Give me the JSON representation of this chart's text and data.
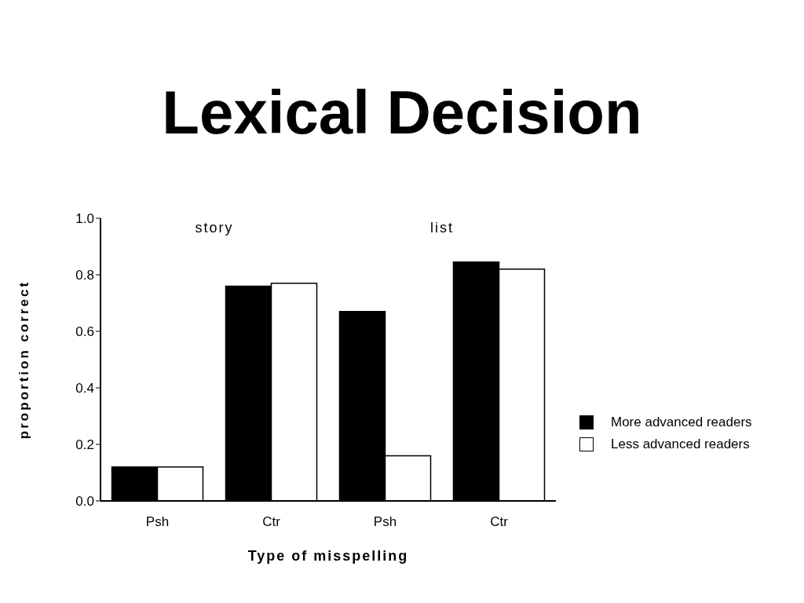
{
  "chart_data": {
    "type": "bar",
    "title": "Lexical Decision",
    "xlabel": "Type of misspelling",
    "ylabel": "proportion correct",
    "categories": [
      "Psh",
      "Ctr",
      "Psh",
      "Ctr"
    ],
    "series": [
      {
        "name": "More advanced readers",
        "color": "#000000",
        "values": [
          0.12,
          0.76,
          0.67,
          0.845
        ]
      },
      {
        "name": "Less advanced readers",
        "color": "#ffffff",
        "values": [
          0.12,
          0.77,
          0.16,
          0.82
        ]
      }
    ],
    "ylim": [
      0,
      1
    ],
    "yticks": [
      {
        "value": 0,
        "label": "0.0"
      },
      {
        "value": 0.2,
        "label": "0.2"
      },
      {
        "value": 0.4,
        "label": "0.4"
      },
      {
        "value": 0.6,
        "label": "0.6"
      },
      {
        "value": 0.8,
        "label": "0.8"
      },
      {
        "value": 1,
        "label": "1.0"
      }
    ],
    "annotations": [
      "story",
      "list"
    ],
    "legend": "right",
    "grid": false
  }
}
